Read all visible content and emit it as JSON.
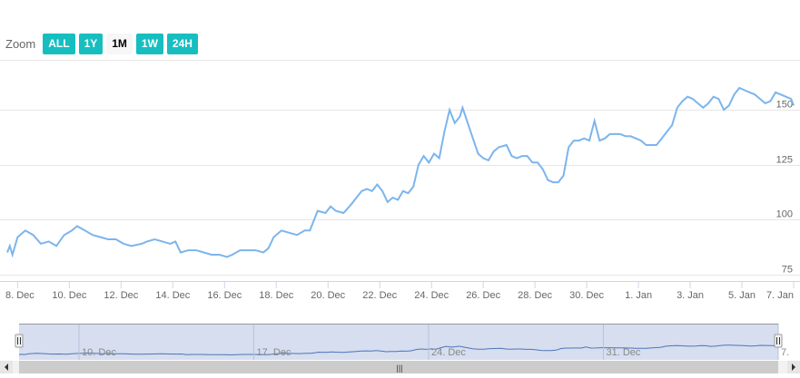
{
  "range_selector": {
    "label": "Zoom",
    "buttons": [
      {
        "label": "ALL",
        "active": false
      },
      {
        "label": "1Y",
        "active": false
      },
      {
        "label": "1M",
        "active": true
      },
      {
        "label": "1W",
        "active": false
      },
      {
        "label": "24H",
        "active": false
      }
    ]
  },
  "colors": {
    "line": "#7cb5ec",
    "button": "#17bec0",
    "navigator_mask": "#ccd6eb",
    "grid": "#e6e6e6"
  },
  "chart_data": {
    "type": "line",
    "title": "",
    "xlabel": "",
    "ylabel": "",
    "x_ticks": [
      "8. Dec",
      "10. Dec",
      "12. Dec",
      "14. Dec",
      "16. Dec",
      "18. Dec",
      "20. Dec",
      "22. Dec",
      "24. Dec",
      "26. Dec",
      "28. Dec",
      "30. Dec",
      "1. Jan",
      "3. Jan",
      "5. Jan",
      "7. Jan"
    ],
    "y_ticks": [
      75,
      100,
      125,
      150
    ],
    "ylim": [
      72,
      172
    ],
    "x_range_days": [
      7.6,
      38.0
    ],
    "grid": true,
    "series": [
      {
        "points": [
          [
            7.6,
            85
          ],
          [
            7.7,
            88
          ],
          [
            7.8,
            84
          ],
          [
            8.0,
            92
          ],
          [
            8.3,
            95
          ],
          [
            8.6,
            93
          ],
          [
            8.9,
            89
          ],
          [
            9.2,
            90
          ],
          [
            9.5,
            88
          ],
          [
            9.8,
            93
          ],
          [
            10.1,
            95
          ],
          [
            10.3,
            97
          ],
          [
            10.6,
            95
          ],
          [
            10.9,
            93
          ],
          [
            11.2,
            92
          ],
          [
            11.5,
            91
          ],
          [
            11.8,
            91
          ],
          [
            12.1,
            89
          ],
          [
            12.4,
            88
          ],
          [
            12.8,
            89
          ],
          [
            13.0,
            90
          ],
          [
            13.3,
            91
          ],
          [
            13.6,
            90
          ],
          [
            13.9,
            89
          ],
          [
            14.1,
            90
          ],
          [
            14.3,
            85
          ],
          [
            14.6,
            86
          ],
          [
            14.9,
            86
          ],
          [
            15.2,
            85
          ],
          [
            15.5,
            84
          ],
          [
            15.8,
            84
          ],
          [
            16.1,
            83
          ],
          [
            16.3,
            84
          ],
          [
            16.6,
            86
          ],
          [
            16.9,
            86
          ],
          [
            17.2,
            86
          ],
          [
            17.5,
            85
          ],
          [
            17.7,
            87
          ],
          [
            17.9,
            92
          ],
          [
            18.2,
            95
          ],
          [
            18.5,
            94
          ],
          [
            18.8,
            93
          ],
          [
            19.1,
            95
          ],
          [
            19.3,
            95
          ],
          [
            19.6,
            104
          ],
          [
            19.9,
            103
          ],
          [
            20.1,
            106
          ],
          [
            20.3,
            104
          ],
          [
            20.6,
            103
          ],
          [
            20.9,
            107
          ],
          [
            21.1,
            110
          ],
          [
            21.3,
            113
          ],
          [
            21.5,
            114
          ],
          [
            21.7,
            113
          ],
          [
            21.9,
            116
          ],
          [
            22.1,
            113
          ],
          [
            22.3,
            108
          ],
          [
            22.5,
            110
          ],
          [
            22.7,
            109
          ],
          [
            22.9,
            113
          ],
          [
            23.1,
            112
          ],
          [
            23.3,
            115
          ],
          [
            23.5,
            125
          ],
          [
            23.7,
            129
          ],
          [
            23.9,
            126
          ],
          [
            24.1,
            130
          ],
          [
            24.3,
            128
          ],
          [
            24.5,
            140
          ],
          [
            24.7,
            150
          ],
          [
            24.9,
            144
          ],
          [
            25.1,
            147
          ],
          [
            25.2,
            151
          ],
          [
            25.4,
            144
          ],
          [
            25.6,
            137
          ],
          [
            25.8,
            130
          ],
          [
            26.0,
            128
          ],
          [
            26.2,
            127
          ],
          [
            26.4,
            131
          ],
          [
            26.6,
            133
          ],
          [
            26.9,
            134
          ],
          [
            27.1,
            129
          ],
          [
            27.3,
            128
          ],
          [
            27.5,
            129
          ],
          [
            27.7,
            129
          ],
          [
            27.9,
            126
          ],
          [
            28.1,
            126
          ],
          [
            28.3,
            123
          ],
          [
            28.5,
            118
          ],
          [
            28.7,
            117
          ],
          [
            28.9,
            117
          ],
          [
            29.1,
            120
          ],
          [
            29.3,
            133
          ],
          [
            29.5,
            136
          ],
          [
            29.7,
            136
          ],
          [
            29.9,
            137
          ],
          [
            30.1,
            136
          ],
          [
            30.3,
            145
          ],
          [
            30.5,
            136
          ],
          [
            30.7,
            137
          ],
          [
            30.9,
            139
          ],
          [
            31.1,
            139
          ],
          [
            31.3,
            139
          ],
          [
            31.5,
            138
          ],
          [
            31.7,
            138
          ],
          [
            31.9,
            137
          ],
          [
            32.1,
            136
          ],
          [
            32.3,
            134
          ],
          [
            32.5,
            134
          ],
          [
            32.7,
            134
          ],
          [
            32.9,
            137
          ],
          [
            33.1,
            140
          ],
          [
            33.3,
            143
          ],
          [
            33.5,
            151
          ],
          [
            33.7,
            154
          ],
          [
            33.9,
            156
          ],
          [
            34.1,
            155
          ],
          [
            34.3,
            153
          ],
          [
            34.5,
            151
          ],
          [
            34.7,
            153
          ],
          [
            34.9,
            156
          ],
          [
            35.1,
            155
          ],
          [
            35.3,
            150
          ],
          [
            35.5,
            152
          ],
          [
            35.7,
            157
          ],
          [
            35.9,
            160
          ],
          [
            36.1,
            159
          ],
          [
            36.3,
            158
          ],
          [
            36.5,
            157
          ],
          [
            36.7,
            155
          ],
          [
            36.9,
            153
          ],
          [
            37.1,
            154
          ],
          [
            37.3,
            158
          ],
          [
            37.5,
            157
          ],
          [
            37.7,
            156
          ],
          [
            37.9,
            155
          ],
          [
            38.0,
            152
          ]
        ]
      }
    ]
  },
  "navigator": {
    "x_ticks": [
      "10. Dec",
      "17. Dec",
      "24. Dec",
      "31. Dec",
      "7."
    ],
    "scrollbar_grip": "|||"
  }
}
